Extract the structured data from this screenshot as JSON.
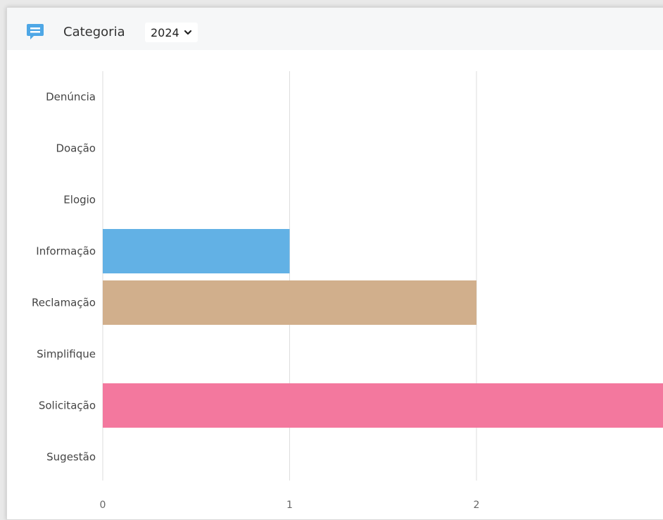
{
  "header": {
    "title": "Categoria",
    "year_selected": "2024",
    "icon": "chat-bubble-icon"
  },
  "colors": {
    "Informação": "#62b1e5",
    "Reclamação": "#d1af8c",
    "Solicitação": "#f3789e",
    "grid": "#dddddd"
  },
  "chart_data": {
    "type": "bar",
    "orientation": "horizontal",
    "title": "",
    "xlabel": "",
    "ylabel": "",
    "categories": [
      "Denúncia",
      "Doação",
      "Elogio",
      "Informação",
      "Reclamação",
      "Simplifique",
      "Solicitação",
      "Sugestão"
    ],
    "values": [
      0,
      0,
      0,
      1,
      2,
      0,
      3,
      0
    ],
    "xlim": [
      0,
      3
    ],
    "xticks": [
      "0",
      "1",
      "2"
    ],
    "grid": true,
    "legend": "none"
  }
}
